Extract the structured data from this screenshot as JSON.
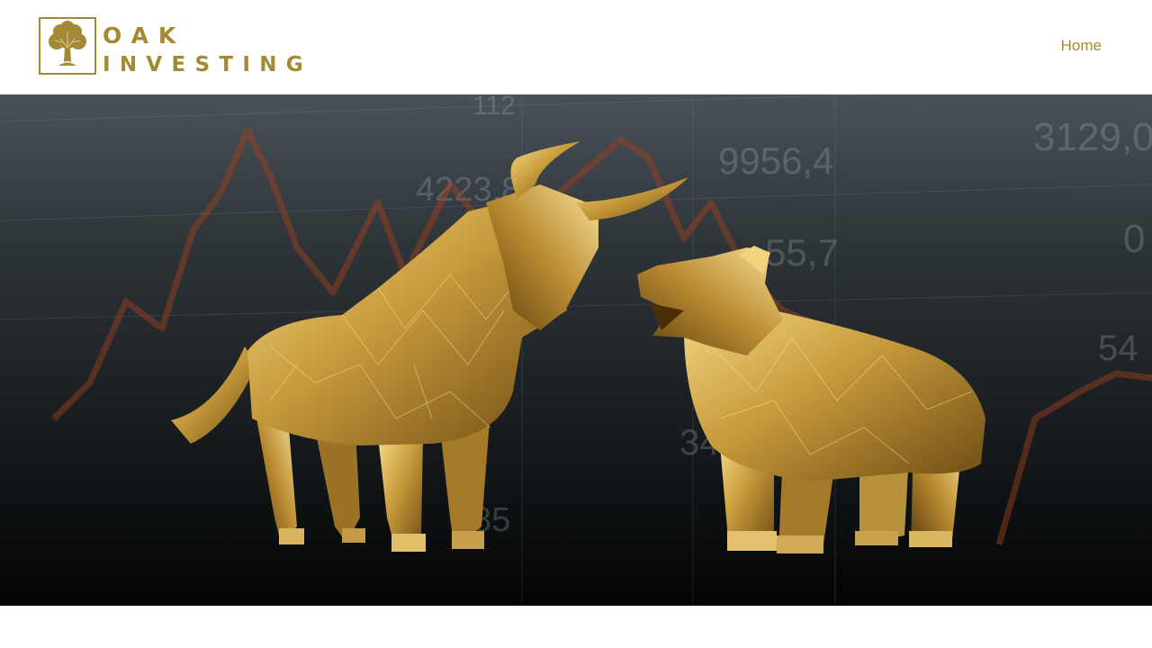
{
  "brand": {
    "line1": "OAK",
    "line2": "INVESTING",
    "emblem_icon": "oak-tree-icon",
    "color": "#a58a35"
  },
  "nav": {
    "items": [
      {
        "label": "Home"
      }
    ]
  },
  "hero": {
    "image": "golden-bull-and-bear-market-image",
    "background_numbers": [
      "112",
      "4223,8",
      "9956,4",
      "55,7",
      "3129,0",
      "34",
      "54",
      "0",
      "85"
    ]
  }
}
